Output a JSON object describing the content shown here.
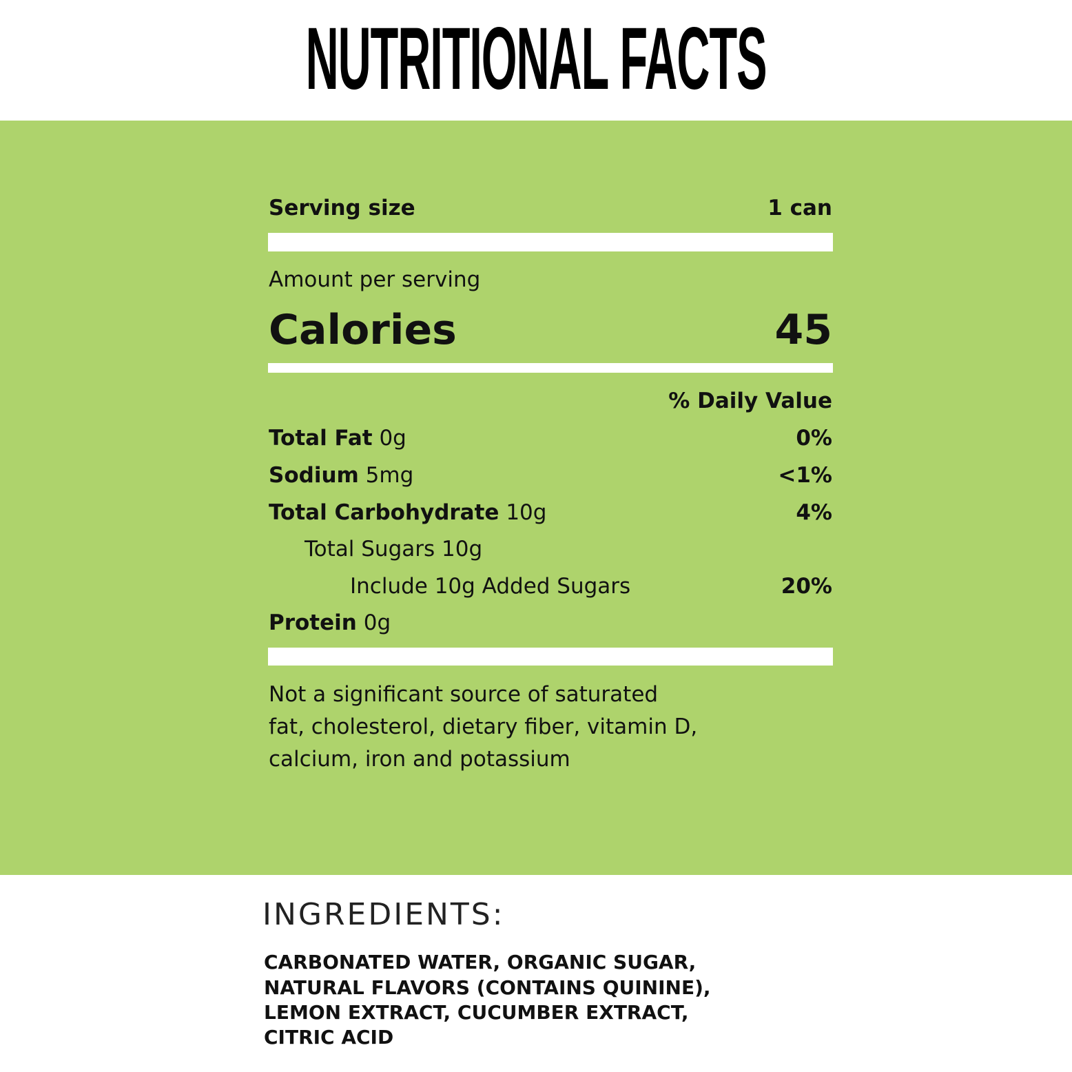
{
  "header": {
    "title": "NUTRITIONAL FACTS"
  },
  "label": {
    "serving_label": "Serving size",
    "serving_value": "1 can",
    "amount_per_serving": "Amount per serving",
    "calories_label": "Calories",
    "calories_value": "45",
    "daily_value_header": "% Daily Value",
    "rows": [
      {
        "name": "Total Fat",
        "amount": "0g",
        "daily_value": "0%"
      },
      {
        "name": "Sodium",
        "amount": "5mg",
        "daily_value": "<1%"
      },
      {
        "name": "Total Carbohydrate",
        "amount": "10g",
        "daily_value": "4%"
      },
      {
        "name": "Total Sugars",
        "amount": "10g"
      },
      {
        "name": "Include 10g Added Sugars",
        "daily_value": "20%"
      },
      {
        "name": "Protein",
        "amount": "0g"
      }
    ],
    "footnote": [
      "Not a significant source of saturated",
      "fat, cholesterol, dietary fiber, vitamin D,",
      "calcium, iron and potassium"
    ]
  },
  "ingredients": {
    "heading": "INGREDIENTS:",
    "lines": [
      "CARBONATED WATER, ORGANIC SUGAR,",
      "NATURAL FLAVORS (CONTAINS QUININE),",
      "LEMON EXTRACT, CUCUMBER EXTRACT,",
      "CITRIC ACID"
    ]
  }
}
